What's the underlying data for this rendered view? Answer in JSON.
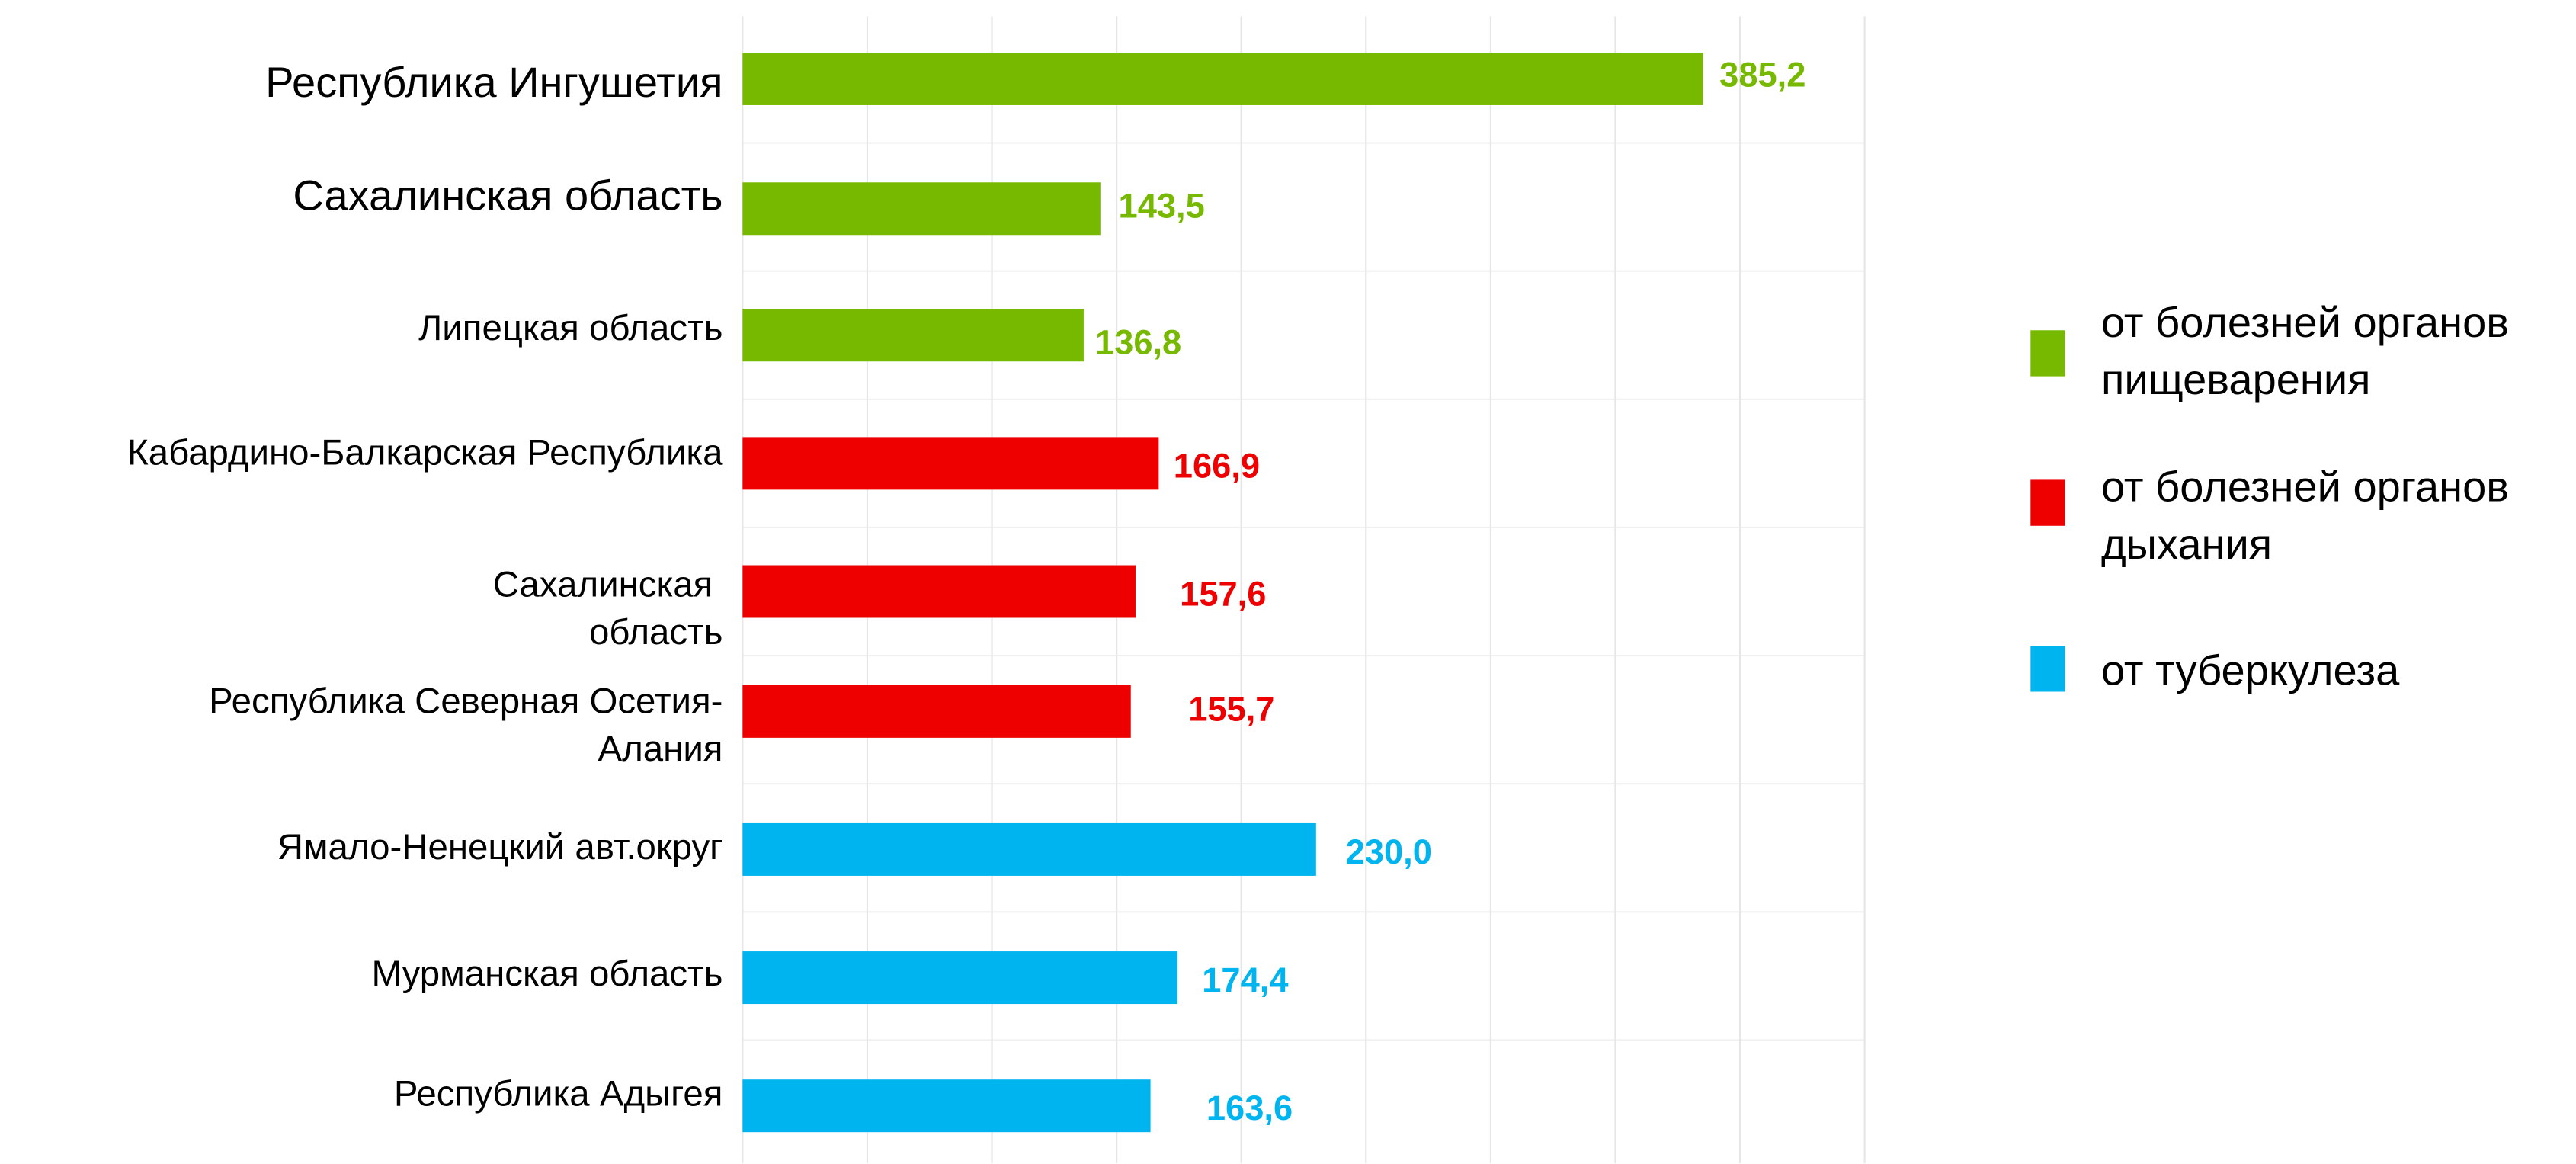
{
  "chart_data": {
    "type": "barh",
    "categories": [
      "Республика Ингушетия",
      "Сахалинская область",
      "Липецкая область",
      "Кабардино-Балкарская Республика",
      "Сахалинская область",
      "Республика Северная Осетия-Алания",
      "Ямало-Ненецкий авт.округ",
      "Мурманская область",
      "Республика Адыгея"
    ],
    "series": [
      {
        "name": "от болезней органов пищеварения",
        "color": "#76b900",
        "values": [
          385.2,
          143.5,
          136.8,
          null,
          null,
          null,
          null,
          null,
          null
        ],
        "value_labels": [
          "385,2",
          "143,5",
          "136,8",
          null,
          null,
          null,
          null,
          null,
          null
        ]
      },
      {
        "name": "от болезней органов дыхания",
        "color": "#ee0000",
        "values": [
          null,
          null,
          null,
          166.9,
          157.6,
          155.7,
          null,
          null,
          null
        ],
        "value_labels": [
          null,
          null,
          null,
          "166,9",
          "157,6",
          "155,7",
          null,
          null,
          null
        ]
      },
      {
        "name": "от туберкулеза",
        "color": "#00b4f0",
        "values": [
          null,
          null,
          null,
          null,
          null,
          null,
          230.0,
          174.4,
          163.6
        ],
        "value_labels": [
          null,
          null,
          null,
          null,
          null,
          null,
          "230,0",
          "174,4",
          "163,6"
        ]
      }
    ],
    "xlim": [
      0,
      450
    ],
    "xticks": [
      0,
      50,
      100,
      150,
      200,
      250,
      300,
      350,
      400,
      450
    ],
    "grid": true,
    "legend": "right"
  }
}
